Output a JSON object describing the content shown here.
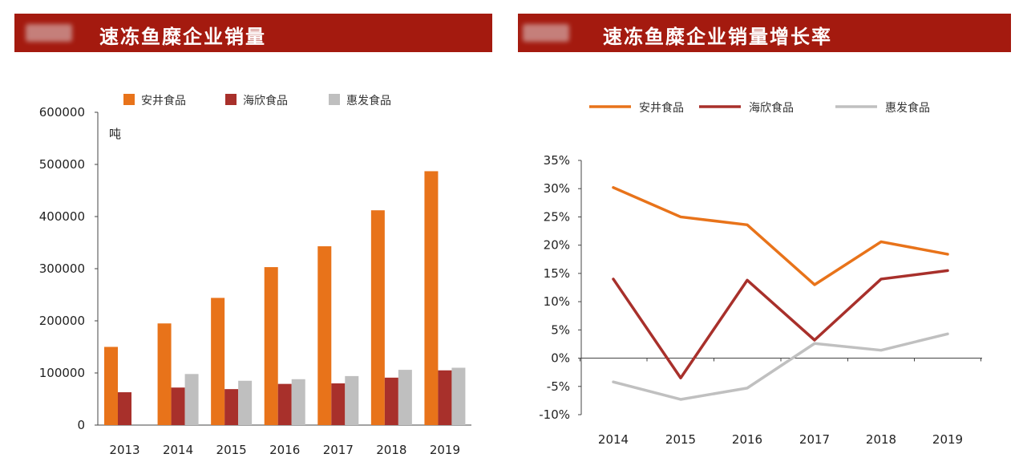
{
  "panels": {
    "left": {
      "title": "速冻鱼糜企业销量"
    },
    "right": {
      "title": "速冻鱼糜企业销量增长率"
    }
  },
  "chart_data": [
    {
      "type": "bar",
      "title": "速冻鱼糜企业销量",
      "ylabel": "吨",
      "xlabel": "",
      "categories": [
        "2013",
        "2014",
        "2015",
        "2016",
        "2017",
        "2018",
        "2019"
      ],
      "series": [
        {
          "name": "安井食品",
          "color": "#e8731a",
          "values": [
            150000,
            195000,
            244000,
            303000,
            343000,
            412000,
            487000
          ]
        },
        {
          "name": "海欣食品",
          "color": "#a8302b",
          "values": [
            63000,
            72000,
            69000,
            79000,
            80000,
            91000,
            105000
          ]
        },
        {
          "name": "惠发食品",
          "color": "#bfbfbf",
          "values": [
            null,
            98000,
            85000,
            88000,
            94000,
            106000,
            110000
          ]
        }
      ],
      "ylim": [
        0,
        600000
      ],
      "yticks": [
        "0",
        "100000",
        "200000",
        "300000",
        "400000",
        "500000",
        "600000"
      ],
      "ytick_values": [
        0,
        100000,
        200000,
        300000,
        400000,
        500000,
        600000
      ],
      "legend": "top"
    },
    {
      "type": "line",
      "title": "速冻鱼糜企业销量增长率",
      "categories": [
        "2014",
        "2015",
        "2016",
        "2017",
        "2018",
        "2019"
      ],
      "series": [
        {
          "name": "安井食品",
          "color": "#e8731a",
          "values": [
            30.2,
            25.0,
            23.6,
            13.0,
            20.6,
            18.4
          ]
        },
        {
          "name": "海欣食品",
          "color": "#a8302b",
          "values": [
            14.0,
            -3.5,
            13.8,
            3.2,
            14.0,
            15.5
          ]
        },
        {
          "name": "惠发食品",
          "color": "#c0c0c0",
          "values": [
            -4.2,
            -7.3,
            -5.3,
            2.6,
            1.4,
            4.3
          ]
        }
      ],
      "ylim": [
        -10,
        35
      ],
      "yticks": [
        "-10%",
        "-5%",
        "0%",
        "5%",
        "10%",
        "15%",
        "20%",
        "25%",
        "30%",
        "35%"
      ],
      "ytick_values": [
        -10,
        -5,
        0,
        5,
        10,
        15,
        20,
        25,
        30,
        35
      ],
      "legend": "top"
    }
  ]
}
